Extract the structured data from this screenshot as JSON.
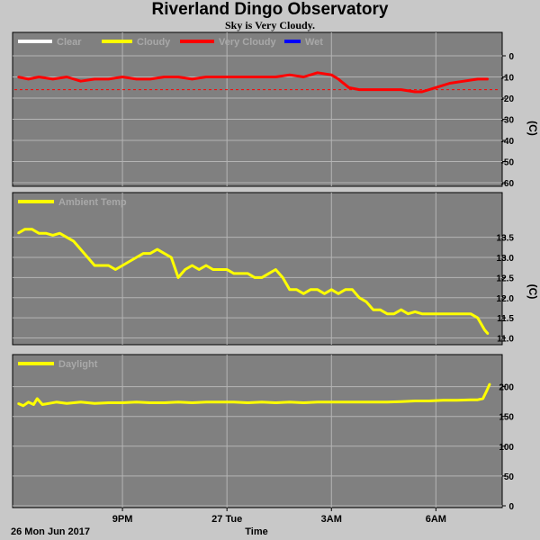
{
  "header": {
    "title": "Riverland Dingo Observatory",
    "subtitle": "Sky is Very Cloudy."
  },
  "x_axis": {
    "date_label": "26 Mon Jun 2017",
    "title": "Time",
    "ticks": [
      {
        "label": "9PM",
        "hour": 3
      },
      {
        "label": "27 Tue",
        "hour": 6
      },
      {
        "label": "3AM",
        "hour": 9
      },
      {
        "label": "6AM",
        "hour": 12
      }
    ],
    "range_hours": [
      0,
      13.8
    ]
  },
  "colors": {
    "background": "#c8c8c8",
    "plot": "#808080",
    "grid": "#b4b4b4",
    "clear": "#ffffff",
    "cloudy": "#ffff00",
    "very_cloudy": "#ff0000",
    "wet": "#0000ff"
  },
  "chart_data": [
    {
      "type": "line",
      "legend": [
        "Clear",
        "Cloudy",
        "Very Cloudy",
        "Wet"
      ],
      "legend_colors": [
        "#ffffff",
        "#ffff00",
        "#ff0000",
        "#0000ff"
      ],
      "ylabel": "(C)",
      "ylim": [
        -60,
        0
      ],
      "yticks": [
        0,
        -10,
        -20,
        -30,
        -40,
        -50,
        -60
      ],
      "threshold": -16,
      "series": [
        {
          "name": "Very Cloudy",
          "color": "#ff0000",
          "x": [
            0,
            0.3,
            0.6,
            1.0,
            1.4,
            1.8,
            2.2,
            2.6,
            3.0,
            3.4,
            3.8,
            4.2,
            4.6,
            5.0,
            5.4,
            5.8,
            6.2,
            6.6,
            7.0,
            7.4,
            7.8,
            8.2,
            8.6,
            9.0,
            9.2,
            9.5,
            9.8,
            10.2,
            10.6,
            11.0,
            11.4,
            11.6,
            12.0,
            12.4,
            12.8,
            13.2,
            13.5
          ],
          "values": [
            -10,
            -11,
            -10,
            -11,
            -10,
            -12,
            -11,
            -11,
            -10,
            -11,
            -11,
            -10,
            -10,
            -11,
            -10,
            -10,
            -10,
            -10,
            -10,
            -10,
            -9,
            -10,
            -8,
            -9,
            -11,
            -15,
            -16,
            -16,
            -16,
            -16,
            -17,
            -17,
            -15,
            -13,
            -12,
            -11,
            -11
          ]
        }
      ]
    },
    {
      "type": "line",
      "legend": [
        "Ambient Temp"
      ],
      "legend_colors": [
        "#ffff00"
      ],
      "ylabel": "(C)",
      "ylim": [
        10.9,
        13.85
      ],
      "yticks": [
        11.0,
        11.5,
        12.0,
        12.5,
        13.0,
        13.5
      ],
      "series": [
        {
          "name": "Ambient Temp",
          "color": "#ffff00",
          "x": [
            0,
            0.2,
            0.4,
            0.6,
            0.8,
            1.0,
            1.2,
            1.4,
            1.6,
            1.8,
            2.0,
            2.2,
            2.4,
            2.6,
            2.8,
            3.0,
            3.2,
            3.4,
            3.6,
            3.8,
            4.0,
            4.2,
            4.4,
            4.6,
            4.8,
            5.0,
            5.2,
            5.4,
            5.6,
            5.8,
            6.0,
            6.2,
            6.4,
            6.6,
            6.8,
            7.0,
            7.2,
            7.4,
            7.6,
            7.8,
            8.0,
            8.2,
            8.4,
            8.6,
            8.8,
            9.0,
            9.2,
            9.4,
            9.6,
            9.8,
            10.0,
            10.2,
            10.4,
            10.6,
            10.8,
            11.0,
            11.2,
            11.4,
            11.6,
            11.8,
            12.0,
            12.2,
            12.4,
            12.6,
            12.8,
            13.0,
            13.2,
            13.4,
            13.5
          ],
          "values": [
            13.6,
            13.7,
            13.7,
            13.6,
            13.6,
            13.55,
            13.6,
            13.5,
            13.4,
            13.2,
            13.0,
            12.8,
            12.8,
            12.8,
            12.7,
            12.8,
            12.9,
            13.0,
            13.1,
            13.1,
            13.2,
            13.1,
            13.0,
            12.5,
            12.7,
            12.8,
            12.7,
            12.8,
            12.7,
            12.7,
            12.7,
            12.6,
            12.6,
            12.6,
            12.5,
            12.5,
            12.6,
            12.7,
            12.5,
            12.2,
            12.2,
            12.1,
            12.2,
            12.2,
            12.1,
            12.2,
            12.1,
            12.2,
            12.2,
            12.0,
            11.9,
            11.7,
            11.7,
            11.6,
            11.6,
            11.7,
            11.6,
            11.65,
            11.6,
            11.6,
            11.6,
            11.6,
            11.6,
            11.6,
            11.6,
            11.6,
            11.5,
            11.2,
            11.1
          ]
        }
      ]
    },
    {
      "type": "line",
      "legend": [
        "Daylight"
      ],
      "legend_colors": [
        "#ffff00"
      ],
      "ylabel": "",
      "ylim": [
        0,
        210
      ],
      "yticks": [
        0,
        50,
        100,
        150,
        200
      ],
      "series": [
        {
          "name": "Daylight",
          "color": "#ffff00",
          "x": [
            0,
            0.15,
            0.3,
            0.45,
            0.55,
            0.7,
            0.9,
            1.1,
            1.4,
            1.8,
            2.2,
            2.6,
            3.0,
            3.4,
            3.8,
            4.2,
            4.6,
            5.0,
            5.4,
            5.8,
            6.2,
            6.6,
            7.0,
            7.4,
            7.8,
            8.2,
            8.6,
            9.0,
            9.4,
            9.8,
            10.2,
            10.6,
            11.0,
            11.4,
            11.8,
            12.2,
            12.6,
            13.0,
            13.2,
            13.35,
            13.45,
            13.55
          ],
          "values": [
            172,
            168,
            174,
            170,
            180,
            170,
            172,
            174,
            172,
            174,
            172,
            173,
            173,
            174,
            173,
            173,
            174,
            173,
            174,
            174,
            174,
            173,
            174,
            173,
            174,
            173,
            174,
            174,
            174,
            174,
            174,
            174,
            175,
            176,
            176,
            177,
            177,
            178,
            178,
            180,
            192,
            205
          ]
        }
      ]
    }
  ]
}
